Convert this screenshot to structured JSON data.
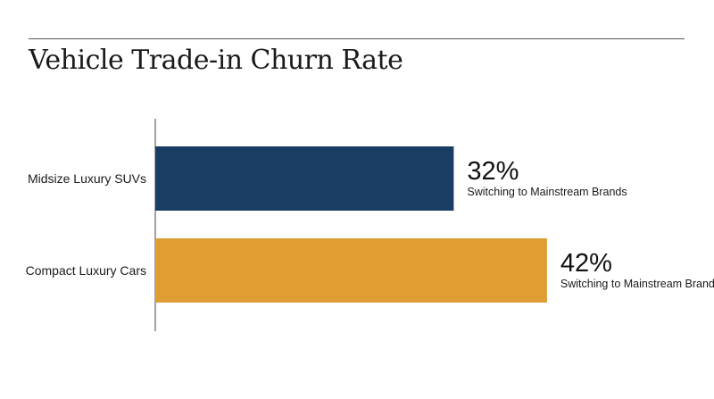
{
  "chart_data": {
    "type": "bar",
    "orientation": "horizontal",
    "title": "Vehicle Trade-in Churn Rate",
    "categories": [
      "Midsize Luxury SUVs",
      "Compact Luxury Cars"
    ],
    "values": [
      32,
      42
    ],
    "value_labels": [
      "32%",
      "42%"
    ],
    "value_sublabel": "Switching to Mainstream Brands",
    "colors": [
      "#1a3d63",
      "#e09d33"
    ],
    "xlim": [
      0,
      100
    ],
    "grid": false,
    "legend": "none"
  }
}
